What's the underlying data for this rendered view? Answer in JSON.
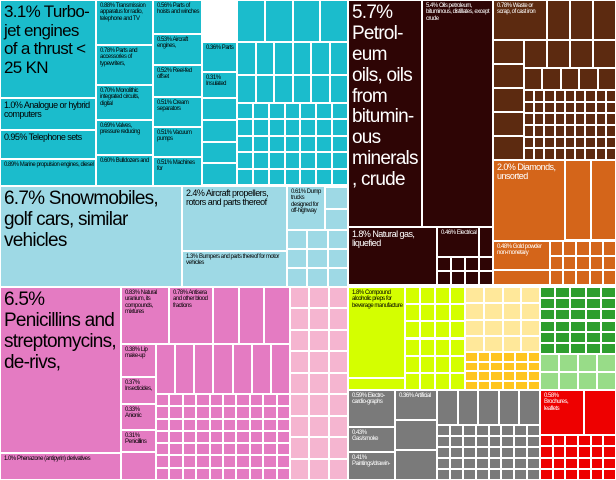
{
  "chart_data": {
    "type": "treemap",
    "colors": {
      "machinery": "#1bbccc",
      "transport": "#9ed9e5",
      "mineral_fuels": "#2e0505",
      "metals": "#5c2a10",
      "precious": "#d4651a",
      "chemicals": "#e47bc2",
      "chemicals_light": "#f5b5d0",
      "foodstuffs": "#d4ff00",
      "animal_veg": "#ffe89a",
      "veg_products": "#ffc520",
      "plastics": "#2e9e2e",
      "plastics_light": "#98dc88",
      "instruments": "#7a7a7a",
      "misc": "#ee0000"
    },
    "items": [
      {
        "label": "3.1% Turbo-jet engines of a thrust < 25 KN",
        "value": 3.1,
        "group": "machinery"
      },
      {
        "label": "1.0% Analogue or hybrid computers",
        "value": 1.0,
        "group": "machinery"
      },
      {
        "label": "0.95% Telephone sets",
        "value": 0.95,
        "group": "machinery"
      },
      {
        "label": "0.89% Marine propulsion engines, diesel",
        "value": 0.89,
        "group": "machinery"
      },
      {
        "label": "0.88% Transmission apparatus for radio, telephone and TV",
        "value": 0.88,
        "group": "machinery"
      },
      {
        "label": "0.78% Parts and accessories of typewriters,",
        "value": 0.78,
        "group": "machinery"
      },
      {
        "label": "0.70% Monolithic integrated circuits, digital",
        "value": 0.7,
        "group": "machinery"
      },
      {
        "label": "0.69% Valves, pressure reducing",
        "value": 0.69,
        "group": "machinery"
      },
      {
        "label": "0.60% Bulldozers and",
        "value": 0.6,
        "group": "machinery"
      },
      {
        "label": "0.56% Parts of hoists and winches",
        "value": 0.56,
        "group": "machinery"
      },
      {
        "label": "0.53% Aircraft engines,",
        "value": 0.53,
        "group": "machinery"
      },
      {
        "label": "0.52% Reel-fed offset",
        "value": 0.52,
        "group": "machinery"
      },
      {
        "label": "0.51% Cream separators",
        "value": 0.51,
        "group": "machinery"
      },
      {
        "label": "0.51% Vacuum pumps",
        "value": 0.51,
        "group": "machinery"
      },
      {
        "label": "0.51% Machines for",
        "value": 0.51,
        "group": "machinery"
      },
      {
        "label": "0.36% Parts",
        "value": 0.36,
        "group": "machinery"
      },
      {
        "label": "0.31% Insulated",
        "value": 0.31,
        "group": "machinery"
      },
      {
        "label": "6.7% Snowmobiles, golf cars, similar vehicles",
        "value": 6.7,
        "group": "transport"
      },
      {
        "label": "2.4% Aircraft propellers, rotors and parts thereof",
        "value": 2.4,
        "group": "transport"
      },
      {
        "label": "1.3% Bumpers and parts thereof for motor vehicles",
        "value": 1.3,
        "group": "transport"
      },
      {
        "label": "0.61% Dump trucks designed for off-highway",
        "value": 0.61,
        "group": "transport"
      },
      {
        "label": "5.7% Petrol-eum oils, oils from bitumin-ous minerals, crude",
        "value": 5.7,
        "group": "mineral_fuels"
      },
      {
        "label": "5.4% Oils petroleum, bituminous, distillates, except crude",
        "value": 5.4,
        "group": "mineral_fuels"
      },
      {
        "label": "1.8% Natural gas, liquefied",
        "value": 1.8,
        "group": "mineral_fuels"
      },
      {
        "label": "0.46% Electrical",
        "value": 0.46,
        "group": "mineral_fuels"
      },
      {
        "label": "0.78% Waste or scrap, of cast iron",
        "value": 0.78,
        "group": "metals"
      },
      {
        "label": "2.0% Diamonds, unsorted",
        "value": 2.0,
        "group": "precious"
      },
      {
        "label": "0.48% Gold powder non-monetary",
        "value": 0.48,
        "group": "precious"
      },
      {
        "label": "6.5% Penicillins and streptomycins, de-rivs,",
        "value": 6.5,
        "group": "chemicals"
      },
      {
        "label": "1.0% Phenazone (antipyrin) derivatives",
        "value": 1.0,
        "group": "chemicals"
      },
      {
        "label": "0.83% Natural uranium, its compounds, mixtures",
        "value": 0.83,
        "group": "chemicals"
      },
      {
        "label": "0.78% Antisera and other blood fractions",
        "value": 0.78,
        "group": "chemicals"
      },
      {
        "label": "0.38% Lip make-up",
        "value": 0.38,
        "group": "chemicals"
      },
      {
        "label": "0.37% Insecticides,",
        "value": 0.37,
        "group": "chemicals"
      },
      {
        "label": "0.33% Anionic",
        "value": 0.33,
        "group": "chemicals"
      },
      {
        "label": "0.31% Penicillins",
        "value": 0.31,
        "group": "chemicals"
      },
      {
        "label": "1.8% Compound alcoholic preps for beverage manufacture",
        "value": 1.8,
        "group": "foodstuffs"
      },
      {
        "label": "0.59% Electro-cardio-graphs",
        "value": 0.59,
        "group": "instruments"
      },
      {
        "label": "0.43% Gas/smoke",
        "value": 0.43,
        "group": "instruments"
      },
      {
        "label": "0.41% Paintings/drawin-",
        "value": 0.41,
        "group": "instruments"
      },
      {
        "label": "0.36% Artificial",
        "value": 0.36,
        "group": "instruments"
      },
      {
        "label": "0.58% Brochures, leaflets",
        "value": 0.58,
        "group": "misc"
      }
    ]
  }
}
